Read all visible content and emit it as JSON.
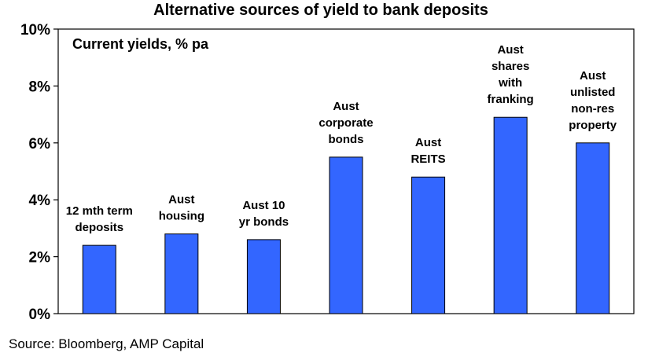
{
  "chart_data": {
    "type": "bar",
    "title": "Alternative sources of yield to bank deposits",
    "subtitle": "Current yields, % pa",
    "categories": [
      "12 mth term deposits",
      "Aust housing",
      "Aust 10 yr bonds",
      "Aust corporate bonds",
      "Aust REITS",
      "Aust shares with franking",
      "Aust unlisted non-res property"
    ],
    "category_label_lines": [
      [
        "12 mth term",
        "deposits"
      ],
      [
        "Aust",
        "housing"
      ],
      [
        "Aust 10",
        "yr bonds"
      ],
      [
        "Aust",
        "corporate",
        "bonds"
      ],
      [
        "Aust",
        "REITS"
      ],
      [
        "Aust",
        "shares",
        "with",
        "franking"
      ],
      [
        "Aust",
        "unlisted",
        "non-res",
        "property"
      ]
    ],
    "values": [
      2.4,
      2.8,
      2.6,
      5.5,
      4.8,
      6.9,
      6.0
    ],
    "ylim": [
      0,
      10
    ],
    "yticks": [
      "0%",
      "2%",
      "4%",
      "6%",
      "8%",
      "10%"
    ],
    "xlabel": "",
    "ylabel": "",
    "grid": false,
    "bar_color": "#3366ff"
  },
  "source_text": "Source: Bloomberg, AMP Capital"
}
